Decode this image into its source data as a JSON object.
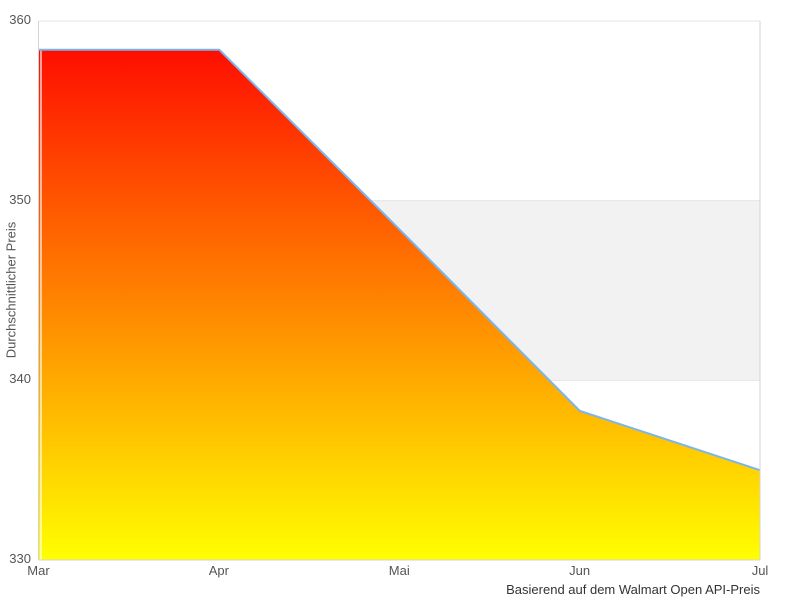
{
  "chart_data": {
    "type": "area",
    "categories": [
      "Mar",
      "Apr",
      "Mai",
      "Jun",
      "Jul"
    ],
    "values": [
      358.4,
      358.4,
      348.4,
      338.3,
      335.0
    ],
    "title": "",
    "xlabel": "",
    "ylabel": "Durchschnittlicher Preis",
    "caption": "Basierend auf dem Walmart Open API-Preis",
    "ylim": [
      330,
      360
    ],
    "yticks": [
      330,
      340,
      350,
      360
    ],
    "grid": true,
    "legend": "none",
    "band": {
      "from": 340,
      "to": 350,
      "color": "#f2f2f2"
    },
    "colors": {
      "line": "#7cb5ec",
      "gradient_top": "#ff0000",
      "gradient_bottom": "#ffff00",
      "grid_line": "#e6e6e6",
      "axis_line": "#d3d3d3",
      "tick_label": "#555555",
      "caption_text": "#333333",
      "background": "#ffffff"
    }
  }
}
